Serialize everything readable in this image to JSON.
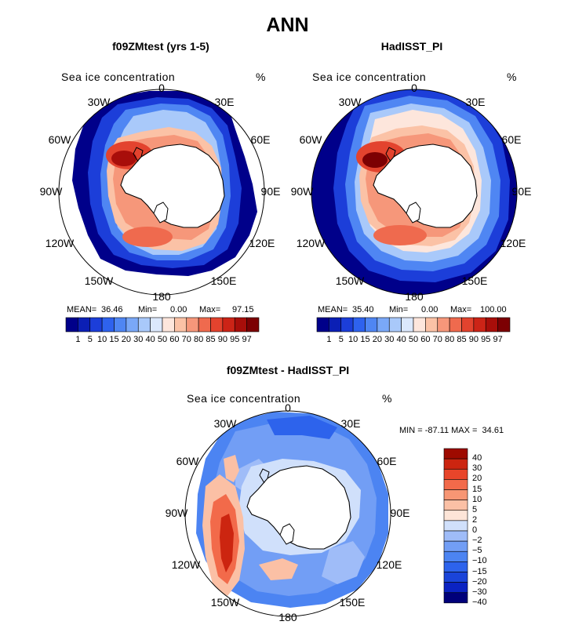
{
  "figure": {
    "title": "ANN"
  },
  "colors": {
    "seq": [
      "#00008a",
      "#0b1fb5",
      "#1c3ed9",
      "#2e62ee",
      "#4f86f3",
      "#7aa8f7",
      "#a9c9fa",
      "#dbe8fc",
      "#fde6dc",
      "#fbc2a6",
      "#f6977a",
      "#ef6a4e",
      "#e3432e",
      "#cc2417",
      "#a80e0a",
      "#7c0003"
    ],
    "div": [
      "#00007a",
      "#0b23c2",
      "#1a44d9",
      "#2d63ec",
      "#4c84f2",
      "#729ef5",
      "#9fbcf8",
      "#d0e0fb",
      "#fde5d8",
      "#fbc0a5",
      "#f79674",
      "#f26a4a",
      "#e8452a",
      "#cc2510",
      "#9e0a00"
    ]
  },
  "panels": {
    "model": {
      "title": "f09ZMtest (yrs 1-5)",
      "variable": "Sea ice concentration",
      "units": "%",
      "mean_label": "MEAN=",
      "mean": "36.46",
      "min_label": "Min=",
      "min": "0.00",
      "max_label": "Max=",
      "max": "97.15"
    },
    "obs": {
      "title": "HadISST_PI",
      "variable": "Sea ice concentration",
      "units": "%",
      "mean_label": "MEAN=",
      "mean": "35.40",
      "min_label": "Min=",
      "min": "0.00",
      "max_label": "Max=",
      "max": "100.00"
    },
    "diff": {
      "title": "f09ZMtest - HadISST_PI",
      "variable": "Sea ice concentration",
      "units": "%",
      "stats": "MIN = -87.11 MAX =  34.61"
    }
  },
  "lon_labels": [
    "0",
    "30E",
    "60E",
    "90E",
    "120E",
    "150E",
    "180",
    "150W",
    "120W",
    "90W",
    "60W",
    "30W"
  ],
  "colorbar_levels": [
    "1",
    "5",
    "10",
    "15",
    "20",
    "30",
    "40",
    "50",
    "60",
    "70",
    "80",
    "85",
    "90",
    "95",
    "97"
  ],
  "diff_levels": [
    "40",
    "30",
    "20",
    "15",
    "10",
    "5",
    "2",
    "0",
    "−2",
    "−5",
    "−10",
    "−15",
    "−20",
    "−30",
    "−40"
  ]
}
